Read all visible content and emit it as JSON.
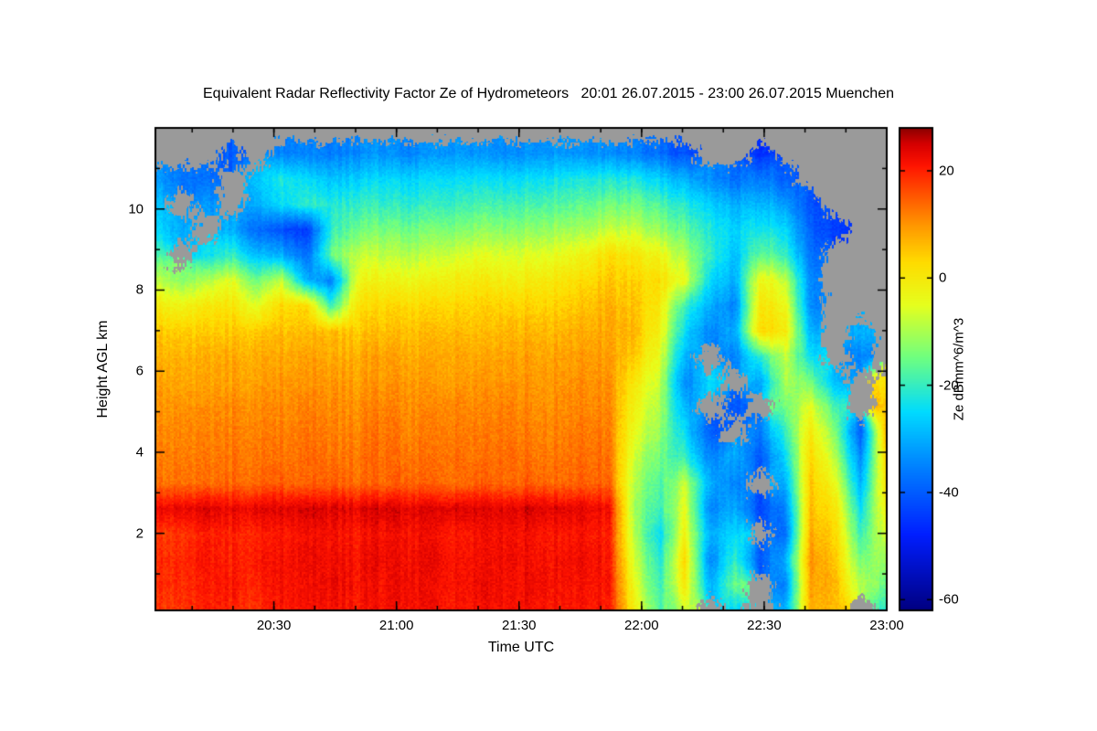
{
  "chart_data": {
    "type": "heatmap",
    "title": "Equivalent Radar Reflectivity Factor Ze of Hydrometeors   20:01 26.07.2015 - 23:00 26.07.2015 Muenchen",
    "location": "Muenchen",
    "start_time": "20:01 26.07.2015",
    "end_time": "23:00 26.07.2015",
    "xlabel": "Time UTC",
    "ylabel": "Height AGL km",
    "colorbar_label": "Ze dBmm^6/m^3",
    "x_range_hours": [
      20.0167,
      23.0
    ],
    "y_range_km": [
      0.1,
      12.0
    ],
    "color_range": [
      -62,
      28
    ],
    "x_ticks": [
      {
        "label": "20:30",
        "hour": 20.5
      },
      {
        "label": "21:00",
        "hour": 21.0
      },
      {
        "label": "21:30",
        "hour": 21.5
      },
      {
        "label": "22:00",
        "hour": 22.0
      },
      {
        "label": "22:30",
        "hour": 22.5
      },
      {
        "label": "23:00",
        "hour": 23.0
      }
    ],
    "y_ticks": [
      {
        "label": "2",
        "km": 2
      },
      {
        "label": "4",
        "km": 4
      },
      {
        "label": "6",
        "km": 6
      },
      {
        "label": "8",
        "km": 8
      },
      {
        "label": "10",
        "km": 10
      }
    ],
    "colorbar_ticks": [
      {
        "label": "20",
        "value": 20
      },
      {
        "label": "0",
        "value": 0
      },
      {
        "label": "-20",
        "value": -20
      },
      {
        "label": "-40",
        "value": -40
      },
      {
        "label": "-60",
        "value": -60
      }
    ],
    "x_minor_step_hours": 0.1666667,
    "y_minor_positions_km": [
      1,
      3,
      5,
      7,
      9,
      11
    ],
    "nodata_rgb": [
      154,
      154,
      154
    ],
    "colormap_stops": [
      {
        "value": -62,
        "color": [
          0,
          0,
          130
        ]
      },
      {
        "value": -48,
        "color": [
          0,
          30,
          255
        ]
      },
      {
        "value": -34,
        "color": [
          0,
          140,
          255
        ]
      },
      {
        "value": -25,
        "color": [
          0,
          220,
          255
        ]
      },
      {
        "value": -15,
        "color": [
          110,
          255,
          130
        ]
      },
      {
        "value": -5,
        "color": [
          230,
          255,
          30
        ]
      },
      {
        "value": 3,
        "color": [
          255,
          220,
          0
        ]
      },
      {
        "value": 10,
        "color": [
          255,
          150,
          0
        ]
      },
      {
        "value": 16,
        "color": [
          255,
          80,
          0
        ]
      },
      {
        "value": 21,
        "color": [
          255,
          20,
          0
        ]
      },
      {
        "value": 25,
        "color": [
          215,
          0,
          0
        ]
      },
      {
        "value": 28,
        "color": [
          140,
          0,
          0
        ]
      }
    ],
    "grid": {
      "times_hours": [
        20.017,
        20.12,
        20.223,
        20.325,
        20.428,
        20.531,
        20.634,
        20.737,
        20.84,
        20.943,
        21.046,
        21.149,
        21.251,
        21.354,
        21.457,
        21.56,
        21.663,
        21.766,
        21.869,
        21.972,
        22.074,
        22.177,
        22.28,
        22.383,
        22.486,
        22.589,
        22.692,
        22.794,
        22.897,
        23.0
      ],
      "heights_km": [
        0.1,
        0.73,
        1.35,
        1.98,
        2.61,
        3.23,
        3.86,
        4.49,
        5.11,
        5.74,
        6.36,
        6.99,
        7.62,
        8.24,
        8.87,
        9.5,
        10.12,
        10.75,
        11.37,
        12.0
      ],
      "values_dbz": [
        [
          18,
          19,
          20,
          20,
          19,
          21,
          22,
          22,
          21,
          22,
          22,
          22,
          21,
          22,
          22,
          22,
          21,
          22,
          20,
          -2,
          -18,
          -8,
          null,
          -25,
          null,
          -30,
          8,
          5,
          null,
          -20
        ],
        [
          19,
          20,
          20,
          21,
          20,
          22,
          22,
          23,
          22,
          22,
          23,
          22,
          22,
          23,
          22,
          23,
          22,
          22,
          21,
          -5,
          -20,
          0,
          -30,
          -15,
          null,
          -35,
          9,
          6,
          -10,
          -15
        ],
        [
          19,
          20,
          21,
          20,
          21,
          22,
          23,
          22,
          22,
          23,
          22,
          23,
          22,
          22,
          23,
          22,
          22,
          23,
          21,
          -8,
          -22,
          2,
          -35,
          -20,
          -40,
          -30,
          10,
          4,
          -15,
          -10
        ],
        [
          18,
          19,
          20,
          20,
          20,
          21,
          22,
          22,
          21,
          22,
          22,
          22,
          21,
          22,
          22,
          22,
          21,
          22,
          20,
          -10,
          -25,
          -3,
          -30,
          -25,
          null,
          -38,
          8,
          2,
          -20,
          -5
        ],
        [
          23,
          24,
          24,
          23,
          24,
          24,
          25,
          24,
          24,
          25,
          24,
          24,
          25,
          24,
          24,
          25,
          24,
          24,
          22,
          -12,
          -20,
          -5,
          -35,
          -30,
          -42,
          -35,
          6,
          0,
          -25,
          0
        ],
        [
          13,
          14,
          13,
          14,
          14,
          15,
          14,
          15,
          14,
          14,
          15,
          14,
          14,
          15,
          14,
          15,
          14,
          15,
          14,
          -10,
          -18,
          -8,
          -30,
          -35,
          null,
          -30,
          5,
          -5,
          -30,
          3
        ],
        [
          12,
          13,
          12,
          13,
          13,
          13,
          14,
          13,
          13,
          14,
          13,
          13,
          14,
          13,
          14,
          13,
          13,
          14,
          13,
          -8,
          -15,
          -20,
          -35,
          -30,
          -40,
          -25,
          3,
          -10,
          -35,
          5
        ],
        [
          11,
          12,
          11,
          12,
          12,
          12,
          13,
          12,
          12,
          13,
          12,
          12,
          13,
          12,
          13,
          12,
          12,
          13,
          12,
          -5,
          -12,
          -25,
          -40,
          null,
          -35,
          -20,
          0,
          -15,
          -40,
          8
        ],
        [
          10,
          11,
          10,
          11,
          11,
          11,
          12,
          11,
          11,
          12,
          11,
          11,
          12,
          11,
          12,
          11,
          11,
          12,
          11,
          -3,
          -10,
          -30,
          null,
          -40,
          null,
          -15,
          -5,
          -20,
          null,
          6
        ],
        [
          9,
          9,
          8,
          9,
          9,
          10,
          10,
          10,
          9,
          10,
          10,
          9,
          10,
          10,
          10,
          10,
          10,
          11,
          10,
          0,
          -8,
          -35,
          -25,
          null,
          -30,
          -10,
          -15,
          -30,
          null,
          2
        ],
        [
          7,
          8,
          7,
          8,
          8,
          8,
          9,
          8,
          8,
          9,
          8,
          8,
          9,
          8,
          9,
          9,
          9,
          10,
          9,
          4,
          -5,
          -30,
          null,
          -35,
          -20,
          -8,
          -25,
          null,
          -35,
          null
        ],
        [
          5,
          5,
          4,
          5,
          5,
          6,
          6,
          6,
          5,
          6,
          6,
          6,
          7,
          6,
          7,
          7,
          7,
          8,
          8,
          6,
          -2,
          -25,
          -35,
          -30,
          4,
          0,
          -30,
          null,
          -30,
          null
        ],
        [
          0,
          -2,
          0,
          1,
          -5,
          3,
          3,
          -20,
          2,
          3,
          3,
          3,
          4,
          4,
          4,
          4,
          4,
          6,
          7,
          5,
          0,
          -20,
          -30,
          -35,
          2,
          -3,
          -35,
          null,
          null,
          null
        ],
        [
          -8,
          -12,
          -10,
          -5,
          -15,
          -8,
          -30,
          -35,
          -3,
          -2,
          -3,
          -2,
          0,
          0,
          -1,
          0,
          1,
          3,
          5,
          3,
          2,
          -5,
          -25,
          -30,
          -2,
          -8,
          -35,
          null,
          null,
          null
        ],
        [
          -18,
          null,
          -25,
          -20,
          -28,
          -30,
          -38,
          -15,
          -8,
          -8,
          -9,
          -8,
          -6,
          -5,
          -6,
          -5,
          -4,
          -2,
          2,
          0,
          -3,
          -10,
          -20,
          -28,
          -15,
          -20,
          -38,
          null,
          null,
          null
        ],
        [
          -25,
          -30,
          null,
          -30,
          -38,
          -42,
          -45,
          -20,
          -15,
          -14,
          -15,
          -14,
          -13,
          -12,
          -13,
          -12,
          -11,
          -10,
          -8,
          -8,
          -12,
          -16,
          -22,
          -26,
          -22,
          -25,
          -40,
          -45,
          null,
          null
        ],
        [
          -28,
          null,
          -33,
          null,
          -30,
          -25,
          -20,
          -22,
          -20,
          -20,
          -21,
          -20,
          -19,
          -18,
          -19,
          -18,
          -17,
          -16,
          -15,
          -15,
          -18,
          -22,
          -26,
          -30,
          -28,
          -32,
          -42,
          null,
          null,
          null
        ],
        [
          -32,
          -36,
          -38,
          null,
          -28,
          -22,
          -25,
          -28,
          -26,
          -25,
          -26,
          -25,
          -24,
          -24,
          -25,
          -24,
          -23,
          -22,
          -22,
          -23,
          -26,
          -30,
          -34,
          -38,
          -35,
          -40,
          null,
          null,
          null,
          null
        ],
        [
          null,
          null,
          null,
          -40,
          null,
          -35,
          -35,
          -36,
          -34,
          -33,
          -35,
          -33,
          -32,
          -33,
          -34,
          -33,
          -32,
          -33,
          -34,
          -36,
          -38,
          -42,
          null,
          null,
          -45,
          null,
          null,
          null,
          null,
          null
        ],
        [
          null,
          null,
          null,
          null,
          null,
          null,
          null,
          null,
          null,
          null,
          null,
          null,
          null,
          null,
          null,
          null,
          null,
          null,
          null,
          null,
          null,
          null,
          null,
          null,
          null,
          null,
          null,
          null,
          null,
          null
        ]
      ]
    }
  }
}
